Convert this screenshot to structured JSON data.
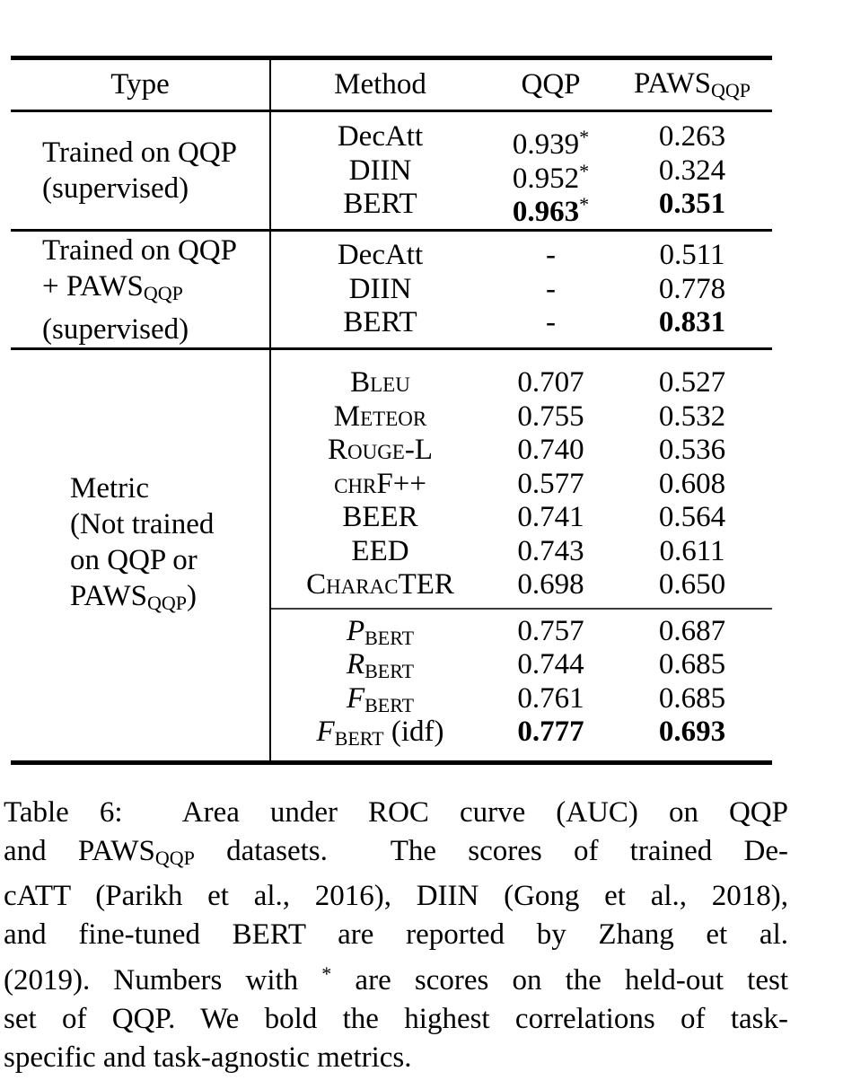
{
  "colors": {
    "text": "#000000",
    "background": "#ffffff",
    "rules": "#000000"
  },
  "table": {
    "header": {
      "type": "Type",
      "method": "Method",
      "qqp": "QQP",
      "paws_base": "PAWS",
      "paws_sub": "QQP"
    },
    "groups": [
      {
        "type_lines": [
          {
            "text": "Trained on QQP"
          },
          {
            "text": "(supervised)"
          }
        ],
        "rows": [
          {
            "method": "DecAtt",
            "qqp": "0.939",
            "star": "*",
            "paws": "0.263"
          },
          {
            "method": "DIIN",
            "qqp": "0.952",
            "star": "*",
            "paws": "0.324"
          },
          {
            "method": "BERT",
            "qqp": "0.963",
            "star": "*",
            "paws": "0.351"
          }
        ]
      },
      {
        "type_lines": [
          {
            "text": "Trained on QQP"
          },
          {
            "pre": "+ PAWS",
            "sub": "QQP"
          },
          {
            "text": "(supervised)"
          }
        ],
        "rows": [
          {
            "method": "DecAtt",
            "qqp": "-",
            "paws": "0.511"
          },
          {
            "method": "DIIN",
            "qqp": "-",
            "paws": "0.778"
          },
          {
            "method": "BERT",
            "qqp": "-",
            "paws": "0.831"
          }
        ]
      },
      {
        "type_lines": [
          {
            "text": "Metric"
          },
          {
            "text": "(Not trained"
          },
          {
            "text": "on QQP or"
          },
          {
            "pre": "PAWS",
            "sub": "QQP",
            "post": ")"
          }
        ],
        "metric_rows": [
          {
            "method": "Bleu",
            "qqp": "0.707",
            "paws": "0.527"
          },
          {
            "method": "Meteor",
            "qqp": "0.755",
            "paws": "0.532"
          },
          {
            "method": "Rouge-L",
            "qqp": "0.740",
            "paws": "0.536"
          },
          {
            "method": "chrF++",
            "qqp": "0.577",
            "paws": "0.608"
          },
          {
            "method": "BEER",
            "qqp": "0.741",
            "paws": "0.564"
          },
          {
            "method": "EED",
            "qqp": "0.743",
            "paws": "0.611"
          },
          {
            "method": "CharacTER",
            "qqp": "0.698",
            "paws": "0.650"
          }
        ],
        "bertscore_rows": [
          {
            "main": "P",
            "sub": "BERT",
            "suffix": "",
            "qqp": "0.757",
            "paws": "0.687"
          },
          {
            "main": "R",
            "sub": "BERT",
            "suffix": "",
            "qqp": "0.744",
            "paws": "0.685"
          },
          {
            "main": "F",
            "sub": "BERT",
            "suffix": "",
            "qqp": "0.761",
            "paws": "0.685"
          },
          {
            "main": "F",
            "sub": "BERT",
            "suffix": " (idf)",
            "qqp": "0.777",
            "paws": "0.693"
          }
        ]
      }
    ]
  },
  "caption": {
    "lines": [
      {
        "text": "Table 6:  Area under ROC curve (AUC) on QQP"
      },
      {
        "pre": "and PAWS",
        "sub": "QQP",
        "post": " datasets.  The scores of trained De-"
      },
      {
        "text": "cATT (Parikh et al., 2016), DIIN (Gong et al., 2018),"
      },
      {
        "text": "and fine-tuned BERT are reported by Zhang et al."
      },
      {
        "pre": "(2019). Numbers with ",
        "sup": "*",
        "post": " are scores on the held-out test"
      },
      {
        "text": "set of QQP. We bold the highest correlations of task-"
      },
      {
        "text": "specific and task-agnostic metrics."
      }
    ]
  }
}
